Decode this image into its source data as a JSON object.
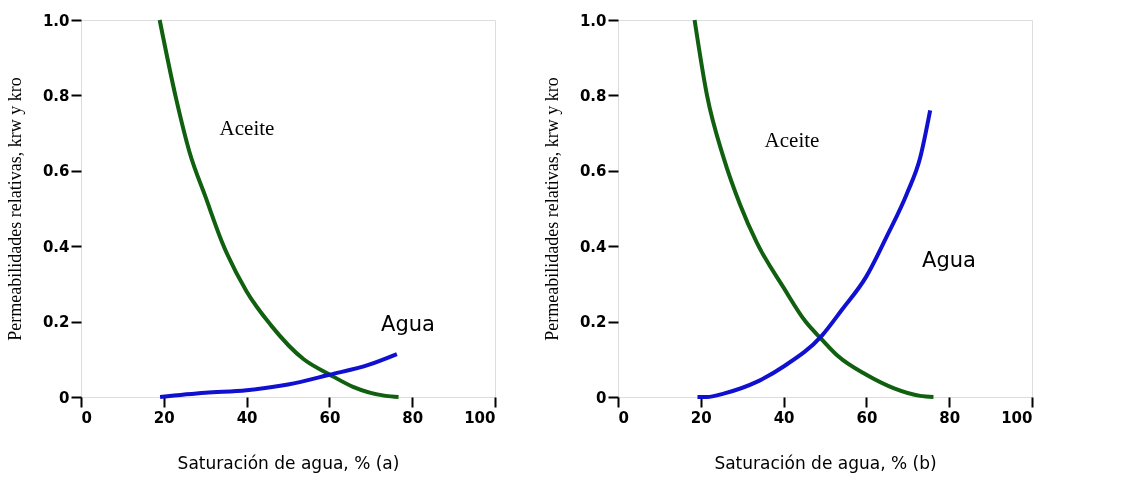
{
  "chart_data": [
    {
      "type": "line",
      "xlabel": "Saturación de agua, % (a)",
      "ylabel": "Permeabilidades relativas, krw y kro",
      "xlim": [
        0,
        100
      ],
      "xticks": [
        0,
        20,
        40,
        60,
        80,
        100
      ],
      "ylim": [
        0,
        1.0
      ],
      "yticks": [
        0,
        {
          "value": 0.2,
          "label": "0.2"
        },
        {
          "value": 0.4,
          "label": "0.4"
        },
        {
          "value": 0.6,
          "label": "0.6"
        },
        {
          "value": 0.8,
          "label": "0.8"
        },
        {
          "value": 1.0,
          "label": "1.0"
        }
      ],
      "grid": false,
      "legend": false,
      "marker": "none",
      "line_style": "solid",
      "series": [
        {
          "name": "Aceite",
          "color": "#106010",
          "x": [
            19,
            23,
            26.2,
            30.1,
            34.1,
            40,
            45.9,
            53.8,
            60,
            65.7,
            73.6,
            76.7
          ],
          "values": [
            1.0,
            0.79,
            0.65,
            0.53,
            0.41,
            0.28,
            0.19,
            0.1,
            0.06,
            0.027,
            0.003,
            0
          ]
        },
        {
          "name": "Agua",
          "color": "#1010d0",
          "x": [
            19.1,
            30,
            40,
            50,
            60,
            69.6,
            76.3
          ],
          "values": [
            0,
            0.011,
            0.018,
            0.033,
            0.059,
            0.086,
            0.114
          ]
        }
      ]
    },
    {
      "type": "line",
      "xlabel": "Saturación de agua, % (b)",
      "ylabel": "Permeabilidades relativas, krw y kro",
      "xlim": [
        0,
        100
      ],
      "xticks": [
        0,
        20,
        40,
        60,
        80,
        100
      ],
      "ylim": [
        0,
        1.0
      ],
      "yticks": [
        0,
        {
          "value": 0.2,
          "label": "0.2"
        },
        {
          "value": 0.4,
          "label": "0.4"
        },
        {
          "value": 0.6,
          "label": "0.6"
        },
        {
          "value": 0.8,
          "label": "0.8"
        },
        {
          "value": 1.0,
          "label": "1.0"
        }
      ],
      "grid": false,
      "legend": false,
      "marker": "none",
      "line_style": "solid",
      "series": [
        {
          "name": "Aceite",
          "color": "#106010",
          "x": [
            18.5,
            21.5,
            25.5,
            29.5,
            33.5,
            40,
            45.3,
            49.2,
            53.2,
            60,
            66.7,
            73,
            76.2
          ],
          "values": [
            1.0,
            0.8,
            0.635,
            0.51,
            0.41,
            0.29,
            0.2,
            0.153,
            0.108,
            0.059,
            0.023,
            0.003,
            0
          ]
        },
        {
          "name": "Agua",
          "color": "#1010d0",
          "x": [
            19.2,
            21.5,
            25.5,
            33.5,
            40,
            49.2,
            54,
            60,
            65.1,
            69.8,
            73,
            75.4
          ],
          "values": [
            0,
            0,
            0.009,
            0.04,
            0.081,
            0.162,
            0.23,
            0.32,
            0.43,
            0.54,
            0.635,
            0.76
          ]
        }
      ]
    }
  ]
}
